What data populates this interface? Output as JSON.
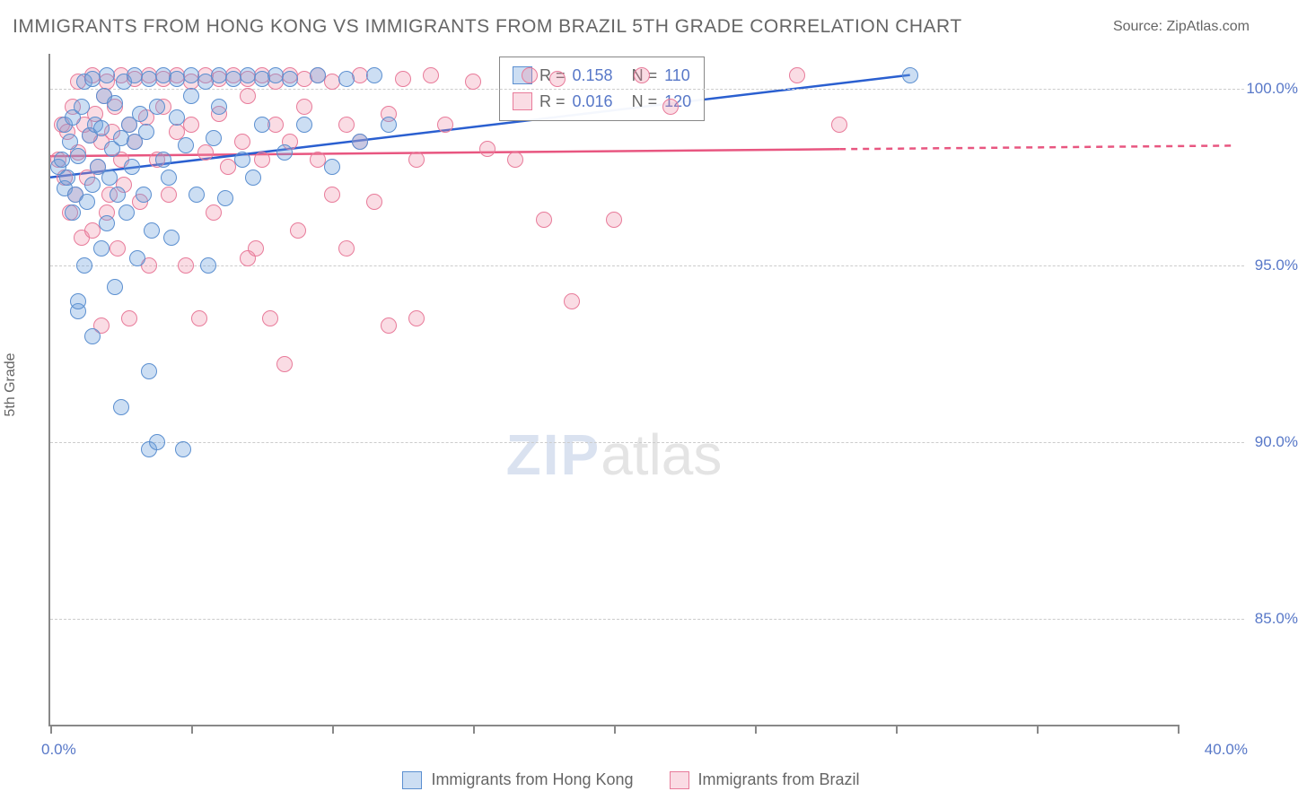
{
  "title": "IMMIGRANTS FROM HONG KONG VS IMMIGRANTS FROM BRAZIL 5TH GRADE CORRELATION CHART",
  "source": "Source: ZipAtlas.com",
  "watermark": {
    "part1": "ZIP",
    "part2": "atlas"
  },
  "yaxis_label": "5th Grade",
  "chart": {
    "type": "scatter-with-regression",
    "background_color": "#ffffff",
    "grid_color": "#cccccc",
    "axis_color": "#888888",
    "text_color": "#666666",
    "value_color": "#5878c8",
    "xlim": [
      0,
      40
    ],
    "ylim": [
      82,
      101
    ],
    "xtick_positions": [
      0,
      5,
      10,
      15,
      20,
      25,
      30,
      35,
      40
    ],
    "x_label_min": "0.0%",
    "x_label_max": "40.0%",
    "yticks": [
      {
        "value": 85,
        "label": "85.0%"
      },
      {
        "value": 90,
        "label": "90.0%"
      },
      {
        "value": 95,
        "label": "95.0%"
      },
      {
        "value": 100,
        "label": "100.0%"
      }
    ],
    "marker_radius": 9,
    "marker_border_width": 1.5,
    "line_width": 2.5
  },
  "series_hk": {
    "label": "Immigrants from Hong Kong",
    "fill_color": "rgba(110,160,220,0.35)",
    "stroke_color": "#5b8fd0",
    "R_label": "R = ",
    "R_value": "0.158",
    "N_label": "N = ",
    "N_value": "110",
    "regression": {
      "x1": 0,
      "y1": 97.5,
      "x2": 30.5,
      "y2": 100.4,
      "color": "#2a5fd0"
    },
    "points": [
      [
        0.3,
        97.8
      ],
      [
        0.4,
        98.0
      ],
      [
        0.5,
        97.2
      ],
      [
        0.5,
        99.0
      ],
      [
        0.6,
        97.5
      ],
      [
        0.7,
        98.5
      ],
      [
        0.8,
        96.5
      ],
      [
        0.8,
        99.2
      ],
      [
        0.9,
        97.0
      ],
      [
        1.0,
        98.1
      ],
      [
        1.0,
        93.7
      ],
      [
        1.0,
        94.0
      ],
      [
        1.1,
        99.5
      ],
      [
        1.2,
        95.0
      ],
      [
        1.2,
        100.2
      ],
      [
        1.3,
        96.8
      ],
      [
        1.4,
        98.7
      ],
      [
        1.5,
        97.3
      ],
      [
        1.5,
        93.0
      ],
      [
        1.5,
        100.3
      ],
      [
        1.6,
        99.0
      ],
      [
        1.7,
        97.8
      ],
      [
        1.8,
        95.5
      ],
      [
        1.8,
        98.9
      ],
      [
        1.9,
        99.8
      ],
      [
        2.0,
        96.2
      ],
      [
        2.0,
        100.4
      ],
      [
        2.1,
        97.5
      ],
      [
        2.2,
        98.3
      ],
      [
        2.3,
        99.6
      ],
      [
        2.3,
        94.4
      ],
      [
        2.4,
        97.0
      ],
      [
        2.5,
        98.6
      ],
      [
        2.5,
        91.0
      ],
      [
        2.6,
        100.2
      ],
      [
        2.7,
        96.5
      ],
      [
        2.8,
        99.0
      ],
      [
        2.9,
        97.8
      ],
      [
        3.0,
        98.5
      ],
      [
        3.0,
        100.4
      ],
      [
        3.1,
        95.2
      ],
      [
        3.2,
        99.3
      ],
      [
        3.3,
        97.0
      ],
      [
        3.4,
        98.8
      ],
      [
        3.5,
        100.3
      ],
      [
        3.5,
        89.8
      ],
      [
        3.5,
        92.0
      ],
      [
        3.6,
        96.0
      ],
      [
        3.8,
        99.5
      ],
      [
        3.8,
        90.0
      ],
      [
        4.0,
        98.0
      ],
      [
        4.0,
        100.4
      ],
      [
        4.2,
        97.5
      ],
      [
        4.3,
        95.8
      ],
      [
        4.5,
        99.2
      ],
      [
        4.5,
        100.3
      ],
      [
        4.7,
        89.8
      ],
      [
        4.8,
        98.4
      ],
      [
        5.0,
        99.8
      ],
      [
        5.0,
        100.4
      ],
      [
        5.2,
        97.0
      ],
      [
        5.5,
        100.2
      ],
      [
        5.6,
        95.0
      ],
      [
        5.8,
        98.6
      ],
      [
        6.0,
        99.5
      ],
      [
        6.0,
        100.4
      ],
      [
        6.2,
        96.9
      ],
      [
        6.5,
        100.3
      ],
      [
        6.8,
        98.0
      ],
      [
        7.0,
        100.4
      ],
      [
        7.2,
        97.5
      ],
      [
        7.5,
        99.0
      ],
      [
        7.5,
        100.3
      ],
      [
        8.0,
        100.4
      ],
      [
        8.3,
        98.2
      ],
      [
        8.5,
        100.3
      ],
      [
        9.0,
        99.0
      ],
      [
        9.5,
        100.4
      ],
      [
        10.0,
        97.8
      ],
      [
        10.5,
        100.3
      ],
      [
        11.0,
        98.5
      ],
      [
        11.5,
        100.4
      ],
      [
        12.0,
        99.0
      ],
      [
        30.5,
        100.4
      ]
    ]
  },
  "series_br": {
    "label": "Immigrants from Brazil",
    "fill_color": "rgba(240,140,165,0.30)",
    "stroke_color": "#e87b9a",
    "R_label": "R = ",
    "R_value": "0.016",
    "N_label": "N = ",
    "N_value": "120",
    "regression_solid": {
      "x1": 0,
      "y1": 98.1,
      "x2": 28,
      "y2": 98.3,
      "color": "#e85680"
    },
    "regression_dashed": {
      "x1": 28,
      "y1": 98.3,
      "x2": 42,
      "y2": 98.4,
      "color": "#e85680"
    },
    "points": [
      [
        0.3,
        98.0
      ],
      [
        0.4,
        99.0
      ],
      [
        0.5,
        97.5
      ],
      [
        0.6,
        98.8
      ],
      [
        0.7,
        96.5
      ],
      [
        0.8,
        99.5
      ],
      [
        0.9,
        97.0
      ],
      [
        1.0,
        98.2
      ],
      [
        1.0,
        100.2
      ],
      [
        1.1,
        95.8
      ],
      [
        1.2,
        99.0
      ],
      [
        1.3,
        97.5
      ],
      [
        1.4,
        98.7
      ],
      [
        1.5,
        96.0
      ],
      [
        1.5,
        100.4
      ],
      [
        1.6,
        99.3
      ],
      [
        1.7,
        97.8
      ],
      [
        1.8,
        93.3
      ],
      [
        1.8,
        98.5
      ],
      [
        1.9,
        99.8
      ],
      [
        2.0,
        96.5
      ],
      [
        2.0,
        100.2
      ],
      [
        2.1,
        97.0
      ],
      [
        2.2,
        98.8
      ],
      [
        2.3,
        99.5
      ],
      [
        2.4,
        95.5
      ],
      [
        2.5,
        98.0
      ],
      [
        2.5,
        100.4
      ],
      [
        2.6,
        97.3
      ],
      [
        2.8,
        99.0
      ],
      [
        2.8,
        93.5
      ],
      [
        3.0,
        98.5
      ],
      [
        3.0,
        100.3
      ],
      [
        3.2,
        96.8
      ],
      [
        3.4,
        99.2
      ],
      [
        3.5,
        95.0
      ],
      [
        3.5,
        100.4
      ],
      [
        3.8,
        98.0
      ],
      [
        4.0,
        99.5
      ],
      [
        4.0,
        100.3
      ],
      [
        4.2,
        97.0
      ],
      [
        4.5,
        98.8
      ],
      [
        4.5,
        100.4
      ],
      [
        4.8,
        95.0
      ],
      [
        5.0,
        99.0
      ],
      [
        5.0,
        100.2
      ],
      [
        5.3,
        93.5
      ],
      [
        5.5,
        98.2
      ],
      [
        5.5,
        100.4
      ],
      [
        5.8,
        96.5
      ],
      [
        6.0,
        99.3
      ],
      [
        6.0,
        100.3
      ],
      [
        6.3,
        97.8
      ],
      [
        6.5,
        100.4
      ],
      [
        6.8,
        98.5
      ],
      [
        7.0,
        99.8
      ],
      [
        7.0,
        95.2
      ],
      [
        7.0,
        100.3
      ],
      [
        7.3,
        95.5
      ],
      [
        7.5,
        98.0
      ],
      [
        7.5,
        100.4
      ],
      [
        7.8,
        93.5
      ],
      [
        8.0,
        99.0
      ],
      [
        8.0,
        100.2
      ],
      [
        8.3,
        92.2
      ],
      [
        8.5,
        98.5
      ],
      [
        8.5,
        100.4
      ],
      [
        8.8,
        96.0
      ],
      [
        9.0,
        99.5
      ],
      [
        9.0,
        100.3
      ],
      [
        9.5,
        98.0
      ],
      [
        9.5,
        100.4
      ],
      [
        10.0,
        97.0
      ],
      [
        10.0,
        100.2
      ],
      [
        10.5,
        99.0
      ],
      [
        10.5,
        95.5
      ],
      [
        11.0,
        98.5
      ],
      [
        11.0,
        100.4
      ],
      [
        11.5,
        96.8
      ],
      [
        12.0,
        99.3
      ],
      [
        12.0,
        93.3
      ],
      [
        12.5,
        100.3
      ],
      [
        13.0,
        98.0
      ],
      [
        13.0,
        93.5
      ],
      [
        13.5,
        100.4
      ],
      [
        14.0,
        99.0
      ],
      [
        15.0,
        100.2
      ],
      [
        15.5,
        98.3
      ],
      [
        16.5,
        98.0
      ],
      [
        17.0,
        100.4
      ],
      [
        17.5,
        96.3
      ],
      [
        18.0,
        100.3
      ],
      [
        18.5,
        94.0
      ],
      [
        20.0,
        96.3
      ],
      [
        21.0,
        100.4
      ],
      [
        22.0,
        99.5
      ],
      [
        26.5,
        100.4
      ],
      [
        28.0,
        99.0
      ]
    ]
  }
}
